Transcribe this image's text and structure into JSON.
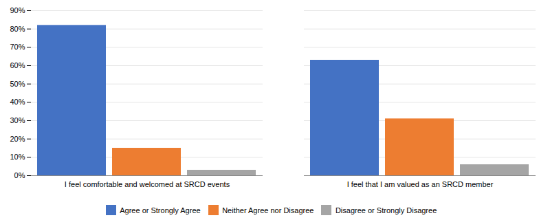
{
  "chart_data": {
    "type": "bar",
    "categories": [
      "I feel comfortable and welcomed at SRCD events",
      "I feel that I am valued as an SRCD member"
    ],
    "series": [
      {
        "name": "Agree or Strongly Agree",
        "color": "#4472C4",
        "values": [
          0.82,
          0.63
        ]
      },
      {
        "name": "Neither Agree nor Disagree",
        "color": "#ED7D31",
        "values": [
          0.15,
          0.31
        ]
      },
      {
        "name": "Disagree or Strongly Disagree",
        "color": "#A5A5A5",
        "values": [
          0.03,
          0.06
        ]
      }
    ],
    "ylim": [
      0,
      0.9
    ],
    "yticks": [
      {
        "value": 0.0,
        "label": "0%"
      },
      {
        "value": 0.1,
        "label": "10%"
      },
      {
        "value": 0.2,
        "label": "20%"
      },
      {
        "value": 0.3,
        "label": "30%"
      },
      {
        "value": 0.4,
        "label": "40%"
      },
      {
        "value": 0.5,
        "label": "50%"
      },
      {
        "value": 0.6,
        "label": "60%"
      },
      {
        "value": 0.7,
        "label": "70%"
      },
      {
        "value": 0.8,
        "label": "80%"
      },
      {
        "value": 0.9,
        "label": "90%"
      }
    ],
    "grid": true,
    "legend": "bottom"
  }
}
